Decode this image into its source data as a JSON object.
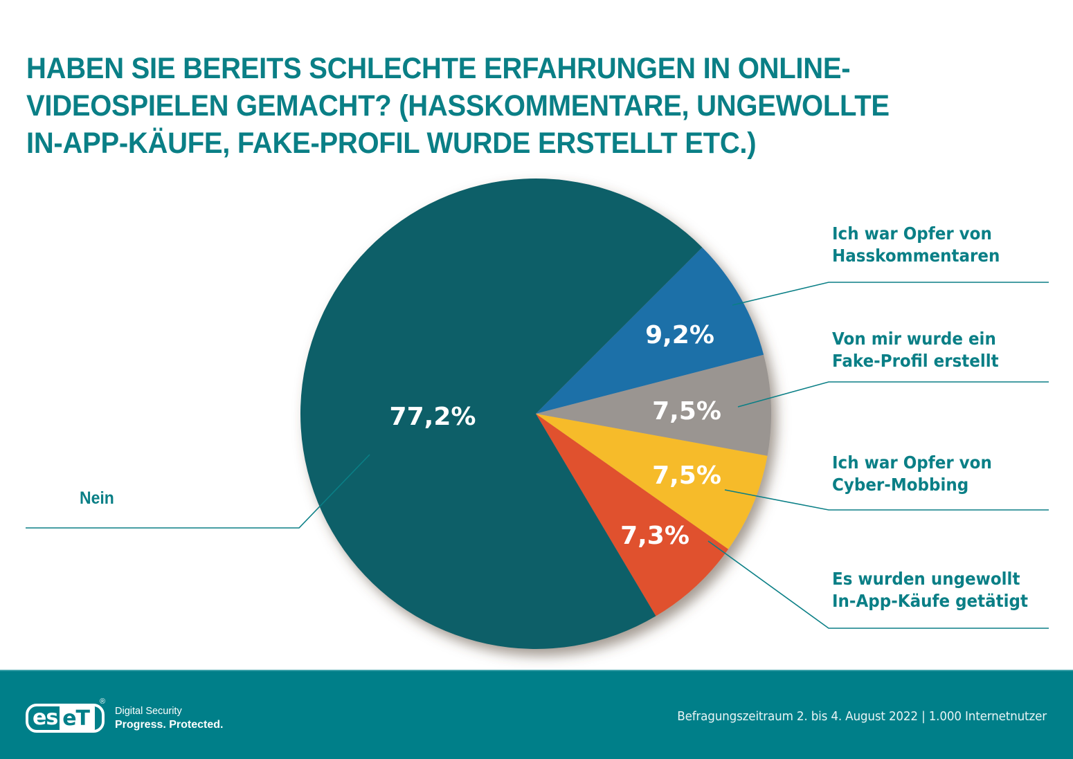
{
  "chart_data": {
    "type": "pie",
    "title": "HABEN SIE BEREITS SCHLECHTE ERFAHRUNGEN IN ONLINE-VIDEOSPIELEN GEMACHT? (HASSKOMMENTARE, UNGEWOLLTE IN-APP-KÄUFE, FAKE-PROFIL WURDE ERSTELLT ETC.)",
    "title_lines": [
      "HABEN SIE BEREITS SCHLECHTE ERFAHRUNGEN IN ONLINE-",
      "VIDEOSPIELEN GEMACHT? (HASSKOMMENTARE, UNGEWOLLTE",
      "IN-APP-KÄUFE, FAKE-PROFIL WURDE ERSTELLT ETC.)"
    ],
    "unit": "%",
    "slices": [
      {
        "label": "Ich war Opfer von Hasskommentaren",
        "label_lines": [
          "Ich war Opfer von",
          "Hasskommentaren"
        ],
        "value": 9.2,
        "value_label": "9,2%",
        "color": "#1f6fa8"
      },
      {
        "label": "Von mir wurde ein Fake-Profil erstellt",
        "label_lines": [
          "Von mir wurde ein",
          "Fake-Profil erstellt"
        ],
        "value": 7.5,
        "value_label": "7,5%",
        "color": "#9a9591"
      },
      {
        "label": "Ich war Opfer von Cyber-Mobbing",
        "label_lines": [
          "Ich war Opfer von",
          "Cyber-Mobbing"
        ],
        "value": 7.5,
        "value_label": "7,5%",
        "color": "#f6bb2a"
      },
      {
        "label": "Es wurden ungewollt In-App-Käufe getätigt",
        "label_lines": [
          "Es wurden ungewollt",
          "In-App-Käufe getätigt"
        ],
        "value": 7.3,
        "value_label": "7,3%",
        "color": "#e0512d"
      },
      {
        "label": "Nein",
        "label_lines": [
          "Nein"
        ],
        "value": 77.2,
        "value_label": "77,2%",
        "color": "#0f5e67"
      }
    ],
    "legend_placement": "outside-right-and-left-with-leader-lines"
  },
  "footer": {
    "logo_text_left": "es",
    "logo_text_right": "eT",
    "registered_mark": "®",
    "tagline_1": "Digital Security",
    "tagline_2": "Progress. Protected.",
    "source": "Befragungszeitraum 2. bis 4. August 2022 | 1.000 Internetnutzer"
  },
  "colors": {
    "brand_teal": "#0a7f86",
    "footer_bg": "#007f89"
  }
}
